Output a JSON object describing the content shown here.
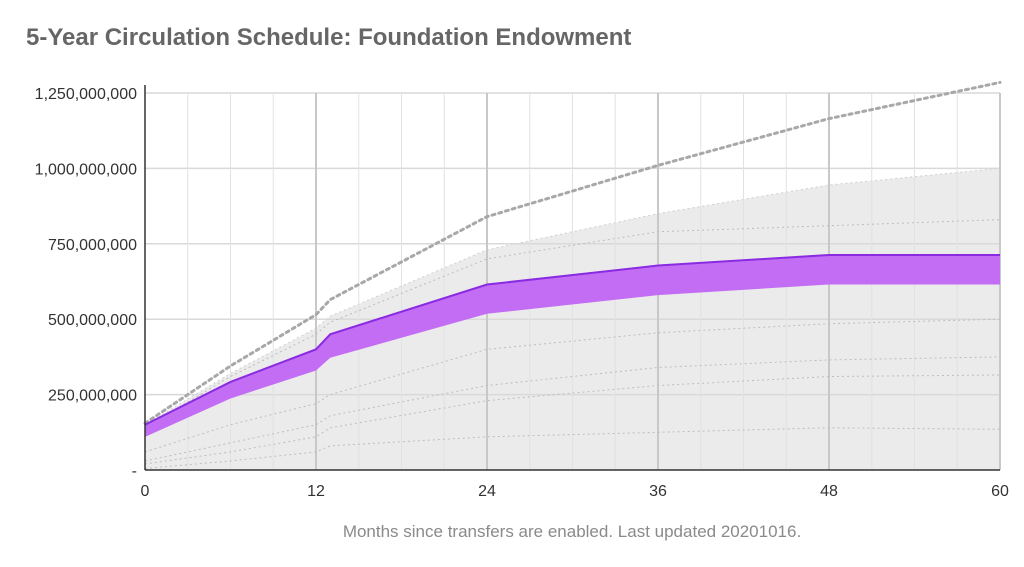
{
  "chart_data": {
    "type": "area",
    "title": "5-Year Circulation Schedule: Foundation Endowment",
    "footnote": "Months since transfers are enabled. Last updated 20201016.",
    "xlabel": "",
    "ylabel": "",
    "xlim": [
      0,
      60
    ],
    "ylim": [
      0,
      1250000000
    ],
    "x_ticks": [
      0,
      12,
      24,
      36,
      48,
      60
    ],
    "y_ticks": [
      {
        "value": 0,
        "label": "-"
      },
      {
        "value": 250000000,
        "label": "250,000,000"
      },
      {
        "value": 500000000,
        "label": "500,000,000"
      },
      {
        "value": 750000000,
        "label": "750,000,000"
      },
      {
        "value": 1000000000,
        "label": "1,000,000,000"
      },
      {
        "value": 1250000000,
        "label": "1,250,000,000"
      }
    ],
    "grid": true,
    "colors": {
      "band_fill": "#c26df4",
      "band_line": "#8a2be2",
      "range_fill": "#ebebeb",
      "dotted": "#a8a8a8",
      "grid": "#d9d9d9"
    },
    "series": [
      {
        "style": "dotted-upper",
        "x": [
          0,
          6,
          12,
          13,
          24,
          36,
          48,
          60
        ],
        "values": [
          155000000,
          345000000,
          515000000,
          565000000,
          840000000,
          1010000000,
          1165000000,
          1285000000
        ]
      },
      {
        "style": "grey-range-upper",
        "x": [
          0,
          6,
          12,
          13,
          24,
          36,
          48,
          60
        ],
        "values": [
          150000000,
          320000000,
          470000000,
          510000000,
          730000000,
          850000000,
          945000000,
          1000000000
        ]
      },
      {
        "style": "grey-range-lower",
        "x": [
          0,
          60
        ],
        "values": [
          0,
          0
        ]
      },
      {
        "style": "dotted-inner",
        "x": [
          0,
          6,
          12,
          13,
          24,
          36,
          48,
          60
        ],
        "values": [
          140000000,
          310000000,
          450000000,
          490000000,
          700000000,
          790000000,
          810000000,
          830000000
        ]
      },
      {
        "style": "dotted-inner",
        "x": [
          0,
          6,
          12,
          13,
          24,
          36,
          48,
          60
        ],
        "values": [
          120000000,
          270000000,
          390000000,
          420000000,
          580000000,
          650000000,
          680000000,
          700000000
        ]
      },
      {
        "style": "dotted-inner",
        "x": [
          0,
          6,
          12,
          13,
          24,
          36,
          48,
          60
        ],
        "values": [
          60000000,
          150000000,
          220000000,
          250000000,
          400000000,
          455000000,
          485000000,
          500000000
        ]
      },
      {
        "style": "dotted-inner",
        "x": [
          0,
          6,
          12,
          13,
          24,
          36,
          48,
          60
        ],
        "values": [
          30000000,
          90000000,
          150000000,
          180000000,
          280000000,
          340000000,
          365000000,
          375000000
        ]
      },
      {
        "style": "dotted-inner",
        "x": [
          0,
          6,
          12,
          13,
          24,
          36,
          48,
          60
        ],
        "values": [
          20000000,
          60000000,
          110000000,
          140000000,
          230000000,
          280000000,
          310000000,
          315000000
        ]
      },
      {
        "style": "dotted-inner",
        "x": [
          0,
          6,
          12,
          13,
          24,
          36,
          48,
          60
        ],
        "values": [
          5000000,
          30000000,
          60000000,
          80000000,
          110000000,
          125000000,
          140000000,
          135000000
        ]
      },
      {
        "style": "band-upper",
        "x": [
          0,
          6,
          12,
          13,
          24,
          36,
          48,
          60
        ],
        "values": [
          150000000,
          292000000,
          400000000,
          450000000,
          615000000,
          678000000,
          713000000,
          713000000
        ]
      },
      {
        "style": "band-lower",
        "x": [
          0,
          6,
          12,
          13,
          24,
          36,
          48,
          60
        ],
        "values": [
          110000000,
          237000000,
          330000000,
          372000000,
          518000000,
          580000000,
          615000000,
          615000000
        ]
      }
    ]
  }
}
